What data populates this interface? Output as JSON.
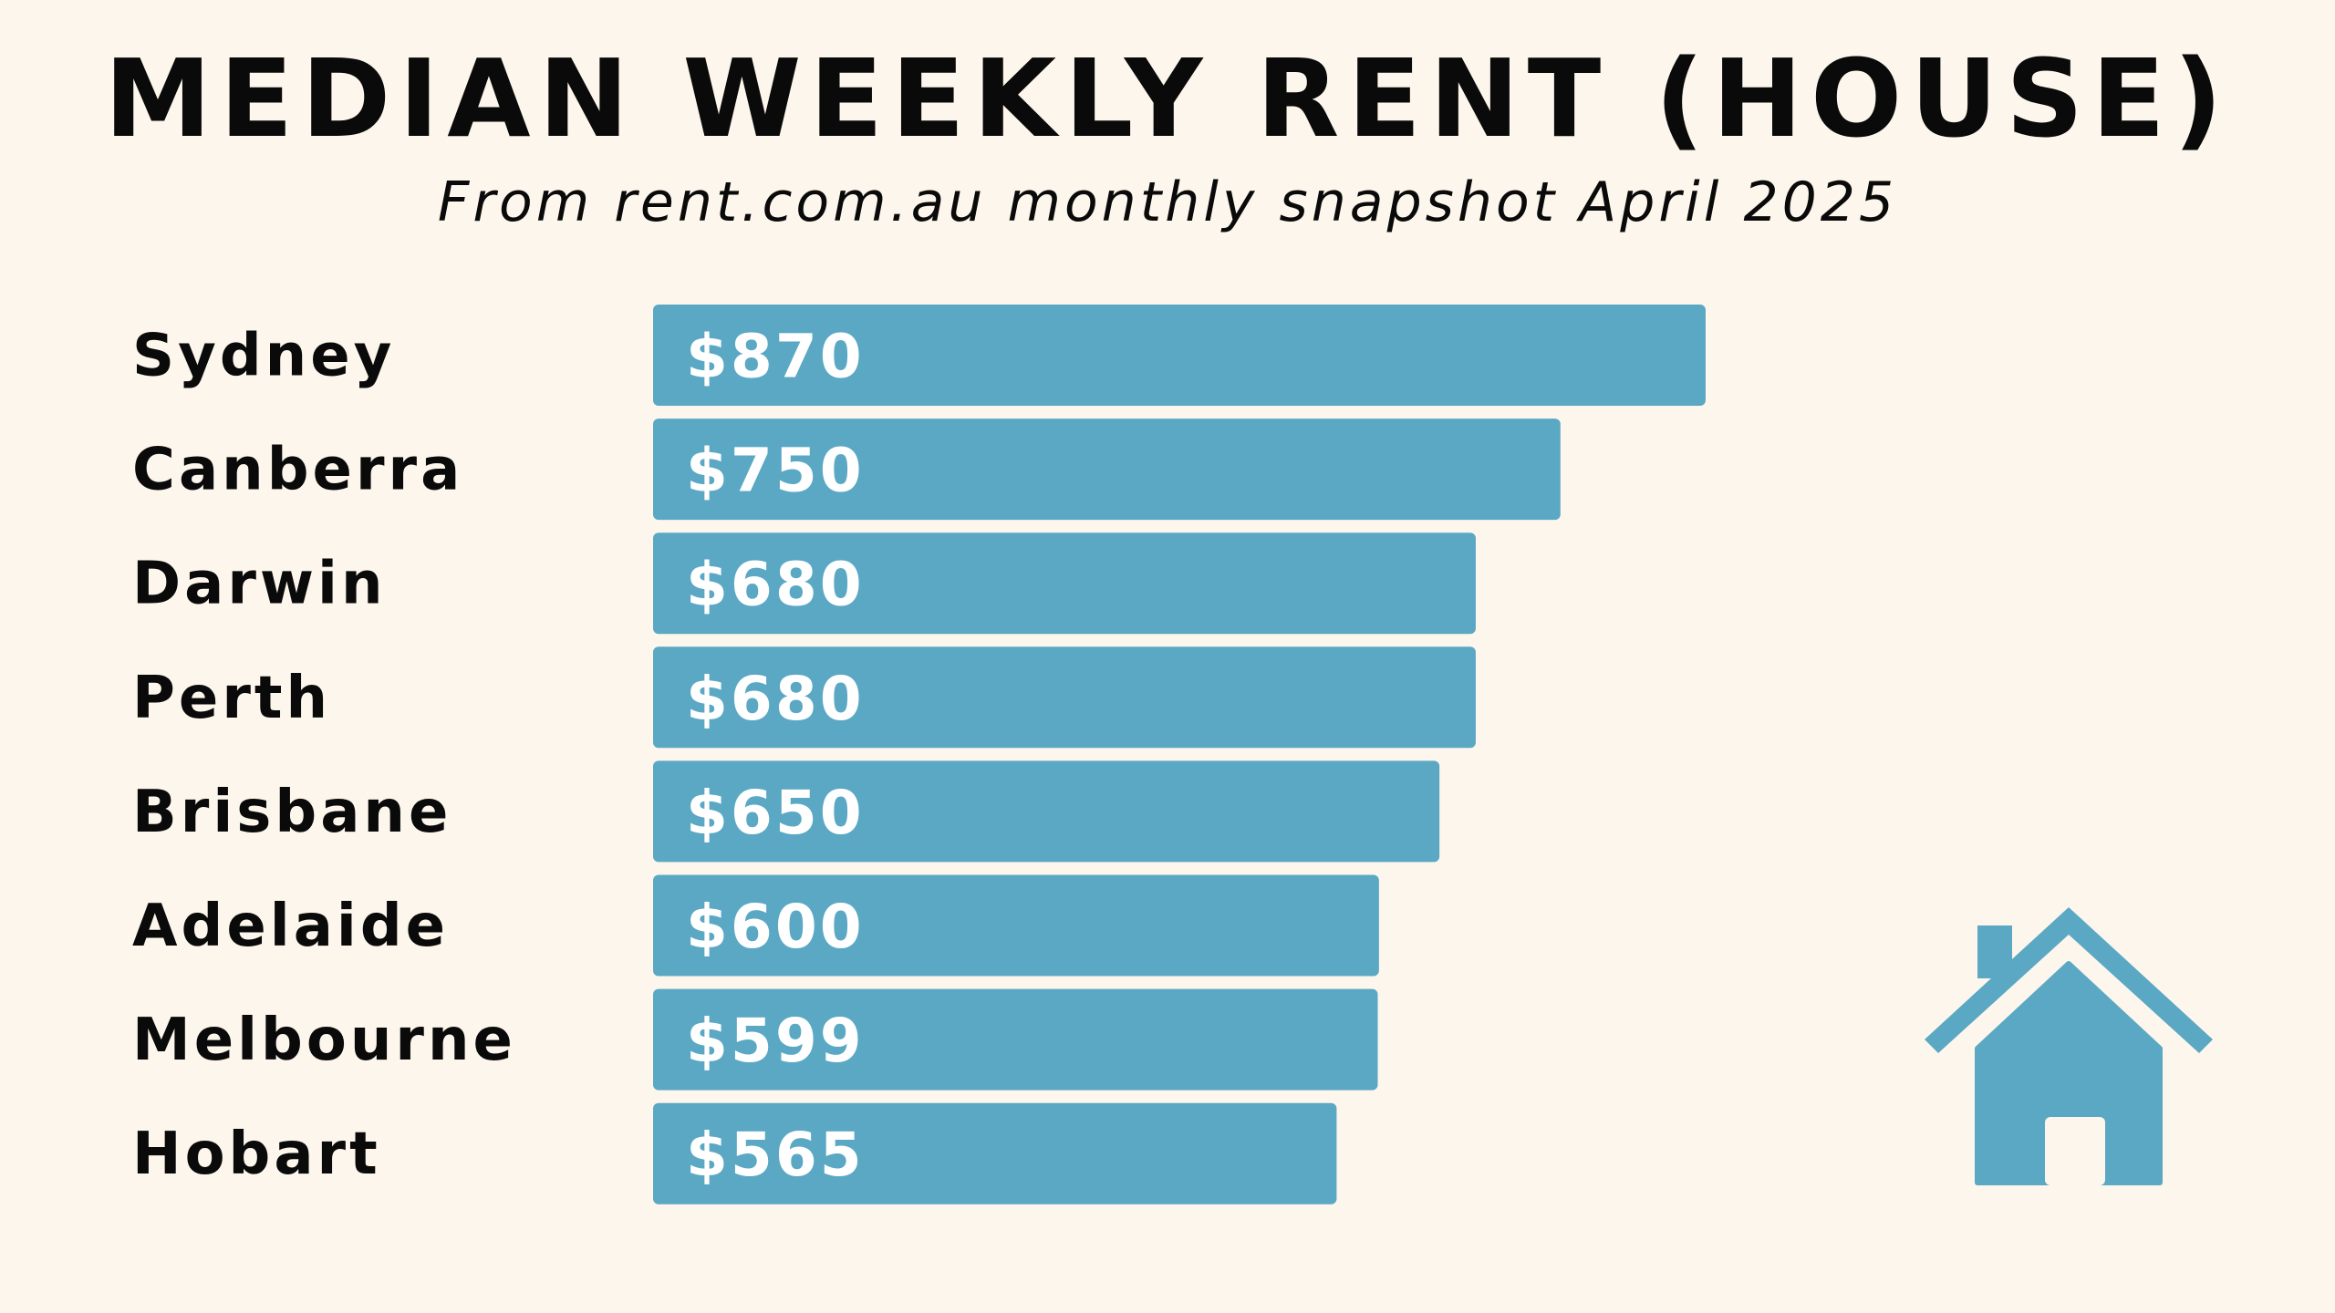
{
  "chart_data": {
    "type": "bar",
    "orientation": "horizontal",
    "title": "MEDIAN WEEKLY RENT (HOUSE)",
    "subtitle": "From rent.com.au monthly snapshot April 2025",
    "categories": [
      "Sydney",
      "Canberra",
      "Darwin",
      "Perth",
      "Brisbane",
      "Adelaide",
      "Melbourne",
      "Hobart"
    ],
    "values": [
      870,
      750,
      680,
      680,
      650,
      600,
      599,
      565
    ],
    "value_labels": [
      "$870",
      "$750",
      "$680",
      "$680",
      "$650",
      "$600",
      "$599",
      "$565"
    ],
    "xlabel": "",
    "ylabel": "",
    "grid": false,
    "legend": "none",
    "bar_color": "#5ba8c4"
  },
  "colors": {
    "background": "#fdf6ec",
    "text": "#0a0a0a",
    "bar": "#5ba8c4",
    "bar_text": "#ffffff"
  },
  "icons": {
    "decoration": "house-icon"
  }
}
